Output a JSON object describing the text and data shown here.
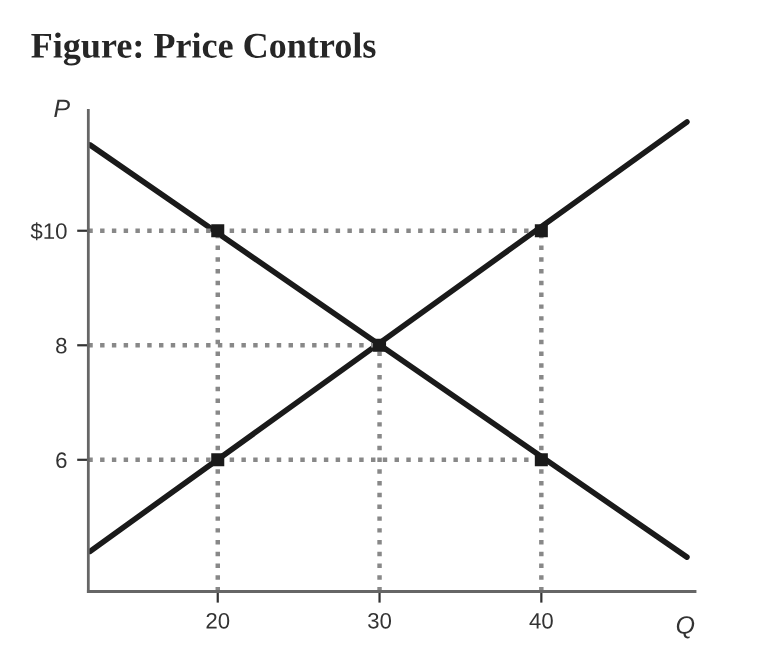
{
  "chart_data": {
    "type": "line",
    "title": "Figure: Price Controls",
    "xlabel": "Q",
    "ylabel": "P",
    "xlim": [
      12,
      49.5
    ],
    "ylim": [
      3.7,
      12.1
    ],
    "xticks": [
      20,
      30,
      40
    ],
    "yticks": [
      6,
      8,
      {
        "value": 10,
        "label": "$10"
      }
    ],
    "grid": false,
    "legend": false,
    "series": [
      {
        "color": "#1a1a1a",
        "x": [
          12.1,
          49
        ],
        "values": [
          11.5,
          4.3
        ],
        "marker": "none",
        "line_style": "solid"
      },
      {
        "color": "#1a1a1a",
        "x": [
          12.1,
          49
        ],
        "values": [
          4.4,
          11.9
        ],
        "marker": "none",
        "line_style": "solid"
      },
      {
        "color": "#888888",
        "x": [
          12,
          40
        ],
        "values": [
          10,
          10
        ],
        "marker": "none",
        "line_style": "dotted"
      },
      {
        "color": "#888888",
        "x": [
          12,
          30
        ],
        "values": [
          8,
          8
        ],
        "marker": "none",
        "line_style": "dotted"
      },
      {
        "color": "#888888",
        "x": [
          12,
          40
        ],
        "values": [
          6,
          6
        ],
        "marker": "none",
        "line_style": "dotted"
      },
      {
        "color": "#888888",
        "x": [
          20,
          20
        ],
        "values": [
          3.7,
          10
        ],
        "marker": "none",
        "line_style": "dotted"
      },
      {
        "color": "#888888",
        "x": [
          30,
          30
        ],
        "values": [
          3.7,
          8
        ],
        "marker": "none",
        "line_style": "dotted"
      },
      {
        "color": "#888888",
        "x": [
          40,
          40
        ],
        "values": [
          3.7,
          10
        ],
        "marker": "none",
        "line_style": "dotted"
      },
      {
        "type": "scatter",
        "color": "#1a1a1a",
        "x": [
          20,
          20,
          30,
          40,
          40
        ],
        "values": [
          10,
          6,
          8,
          10,
          6
        ],
        "marker": "square"
      }
    ]
  }
}
